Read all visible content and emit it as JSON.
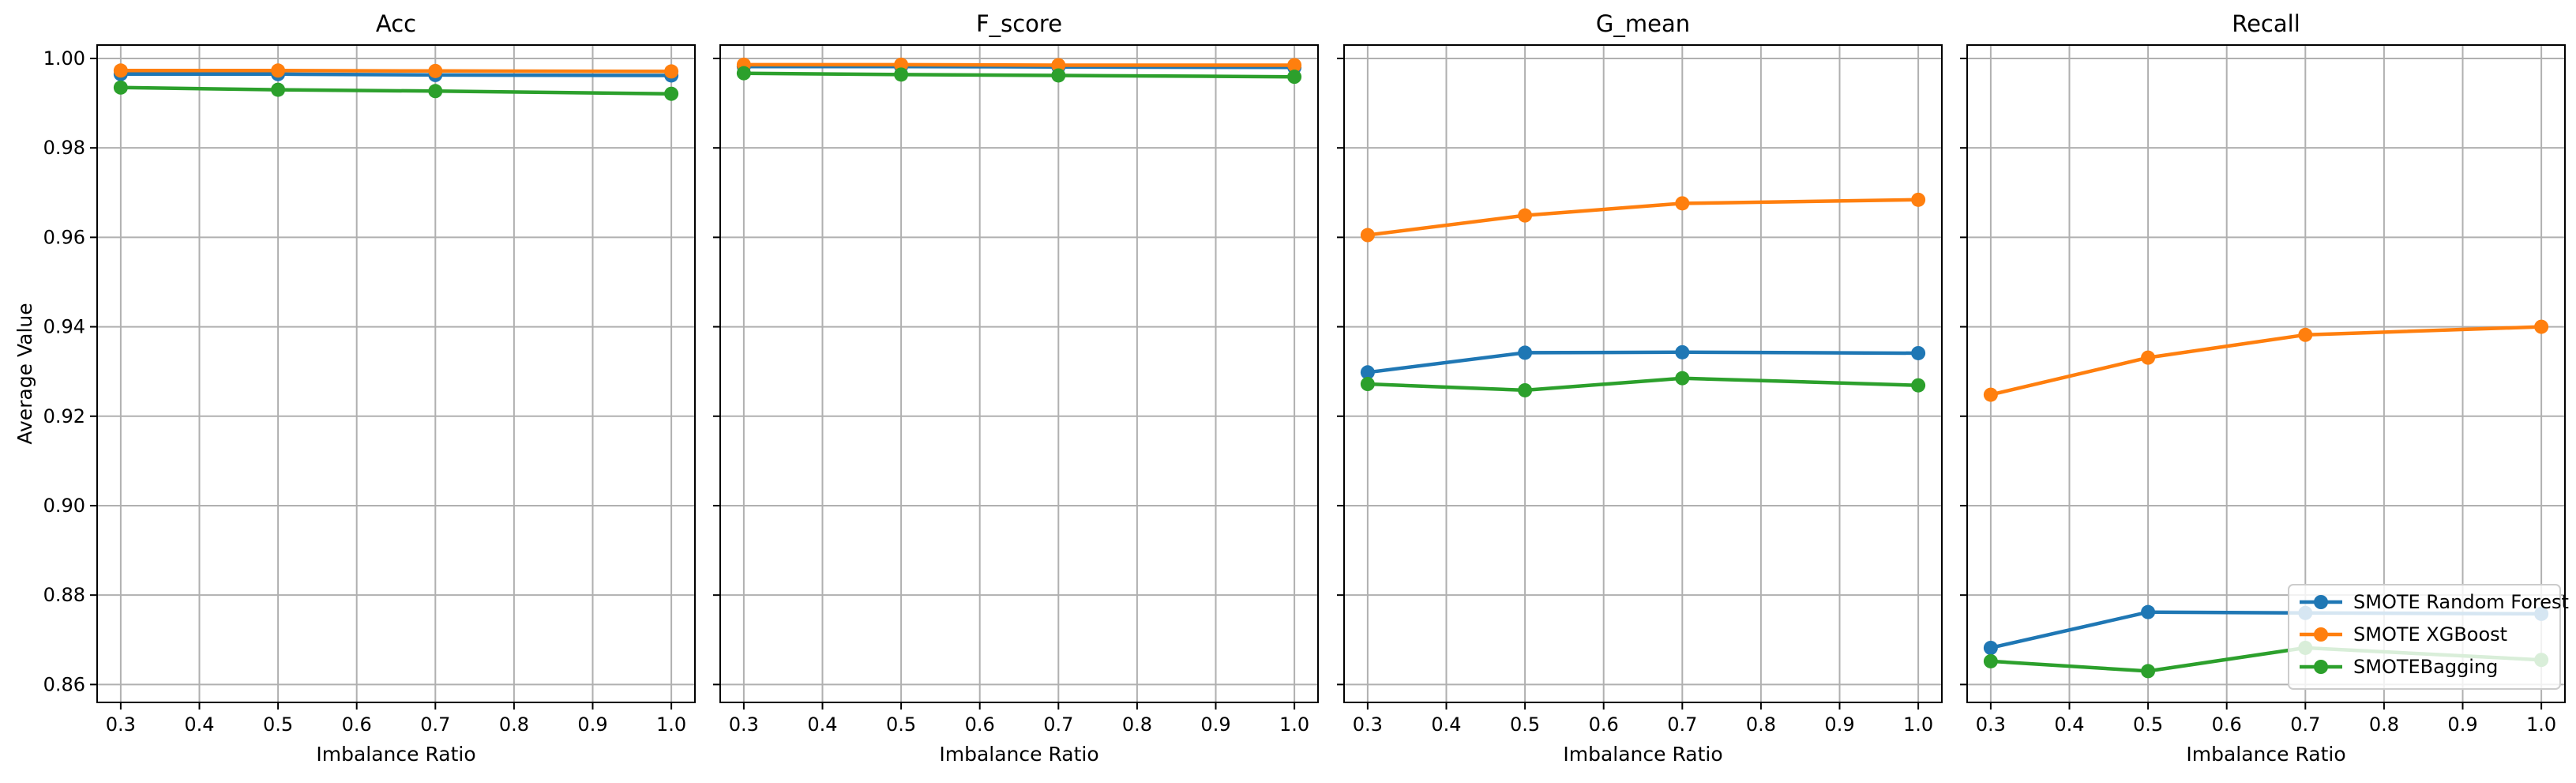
{
  "figure": {
    "ylabel": "Average Value"
  },
  "colors": {
    "SMOTE Random Forest": "#1f77b4",
    "SMOTE XGBoost": "#ff7f0e",
    "SMOTEBagging": "#2ca02c",
    "grid": "#b0b0b0",
    "axes": "#000000"
  },
  "legend": {
    "placement": "lower-right",
    "entries": [
      "SMOTE Random Forest",
      "SMOTE XGBoost",
      "SMOTEBagging"
    ]
  },
  "chart_data": [
    {
      "type": "line",
      "title": "Acc",
      "xlabel": "Imbalance Ratio",
      "ylabel": "Average Value",
      "xlim": [
        0.27,
        1.03
      ],
      "ylim": [
        0.856,
        1.003
      ],
      "xticks": [
        "0.3",
        "0.4",
        "0.5",
        "0.6",
        "0.7",
        "0.8",
        "0.9",
        "1.0"
      ],
      "yticks": [
        "0.86",
        "0.88",
        "0.90",
        "0.92",
        "0.94",
        "0.96",
        "0.98",
        "1.00"
      ],
      "grid": true,
      "x": [
        0.3,
        0.5,
        0.7,
        1.0
      ],
      "series": [
        {
          "name": "SMOTE Random Forest",
          "values": [
            0.9965,
            0.9965,
            0.9963,
            0.9962
          ]
        },
        {
          "name": "SMOTE XGBoost",
          "values": [
            0.9973,
            0.9973,
            0.9972,
            0.9971
          ]
        },
        {
          "name": "SMOTEBagging",
          "values": [
            0.9935,
            0.993,
            0.9927,
            0.9921
          ]
        }
      ]
    },
    {
      "type": "line",
      "title": "F_score",
      "xlabel": "Imbalance Ratio",
      "xlim": [
        0.27,
        1.03
      ],
      "ylim": [
        0.856,
        1.003
      ],
      "xticks": [
        "0.3",
        "0.4",
        "0.5",
        "0.6",
        "0.7",
        "0.8",
        "0.9",
        "1.0"
      ],
      "yticks": [
        "0.86",
        "0.88",
        "0.90",
        "0.92",
        "0.94",
        "0.96",
        "0.98",
        "1.00"
      ],
      "grid": true,
      "x": [
        0.3,
        0.5,
        0.7,
        1.0
      ],
      "series": [
        {
          "name": "SMOTE Random Forest",
          "values": [
            0.9982,
            0.9982,
            0.9981,
            0.998
          ]
        },
        {
          "name": "SMOTE XGBoost",
          "values": [
            0.9986,
            0.9986,
            0.9985,
            0.9985
          ]
        },
        {
          "name": "SMOTEBagging",
          "values": [
            0.9967,
            0.9964,
            0.9962,
            0.9959
          ]
        }
      ]
    },
    {
      "type": "line",
      "title": "G_mean",
      "xlabel": "Imbalance Ratio",
      "xlim": [
        0.27,
        1.03
      ],
      "ylim": [
        0.856,
        1.003
      ],
      "xticks": [
        "0.3",
        "0.4",
        "0.5",
        "0.6",
        "0.7",
        "0.8",
        "0.9",
        "1.0"
      ],
      "yticks": [
        "0.86",
        "0.88",
        "0.90",
        "0.92",
        "0.94",
        "0.96",
        "0.98",
        "1.00"
      ],
      "grid": true,
      "x": [
        0.3,
        0.5,
        0.7,
        1.0
      ],
      "series": [
        {
          "name": "SMOTE Random Forest",
          "values": [
            0.9298,
            0.9342,
            0.9343,
            0.9341
          ]
        },
        {
          "name": "SMOTE XGBoost",
          "values": [
            0.9605,
            0.9649,
            0.9676,
            0.9684
          ]
        },
        {
          "name": "SMOTEBagging",
          "values": [
            0.9272,
            0.9258,
            0.9285,
            0.9269
          ]
        }
      ]
    },
    {
      "type": "line",
      "title": "Recall",
      "xlabel": "Imbalance Ratio",
      "xlim": [
        0.27,
        1.03
      ],
      "ylim": [
        0.856,
        1.003
      ],
      "xticks": [
        "0.3",
        "0.4",
        "0.5",
        "0.6",
        "0.7",
        "0.8",
        "0.9",
        "1.0"
      ],
      "yticks": [
        "0.86",
        "0.88",
        "0.90",
        "0.92",
        "0.94",
        "0.96",
        "0.98",
        "1.00"
      ],
      "grid": true,
      "x": [
        0.3,
        0.5,
        0.7,
        1.0
      ],
      "series": [
        {
          "name": "SMOTE Random Forest",
          "values": [
            0.8682,
            0.8762,
            0.876,
            0.8758
          ]
        },
        {
          "name": "SMOTE XGBoost",
          "values": [
            0.9248,
            0.9331,
            0.9382,
            0.94
          ]
        },
        {
          "name": "SMOTEBagging",
          "values": [
            0.8652,
            0.863,
            0.8682,
            0.8655
          ]
        }
      ]
    }
  ]
}
